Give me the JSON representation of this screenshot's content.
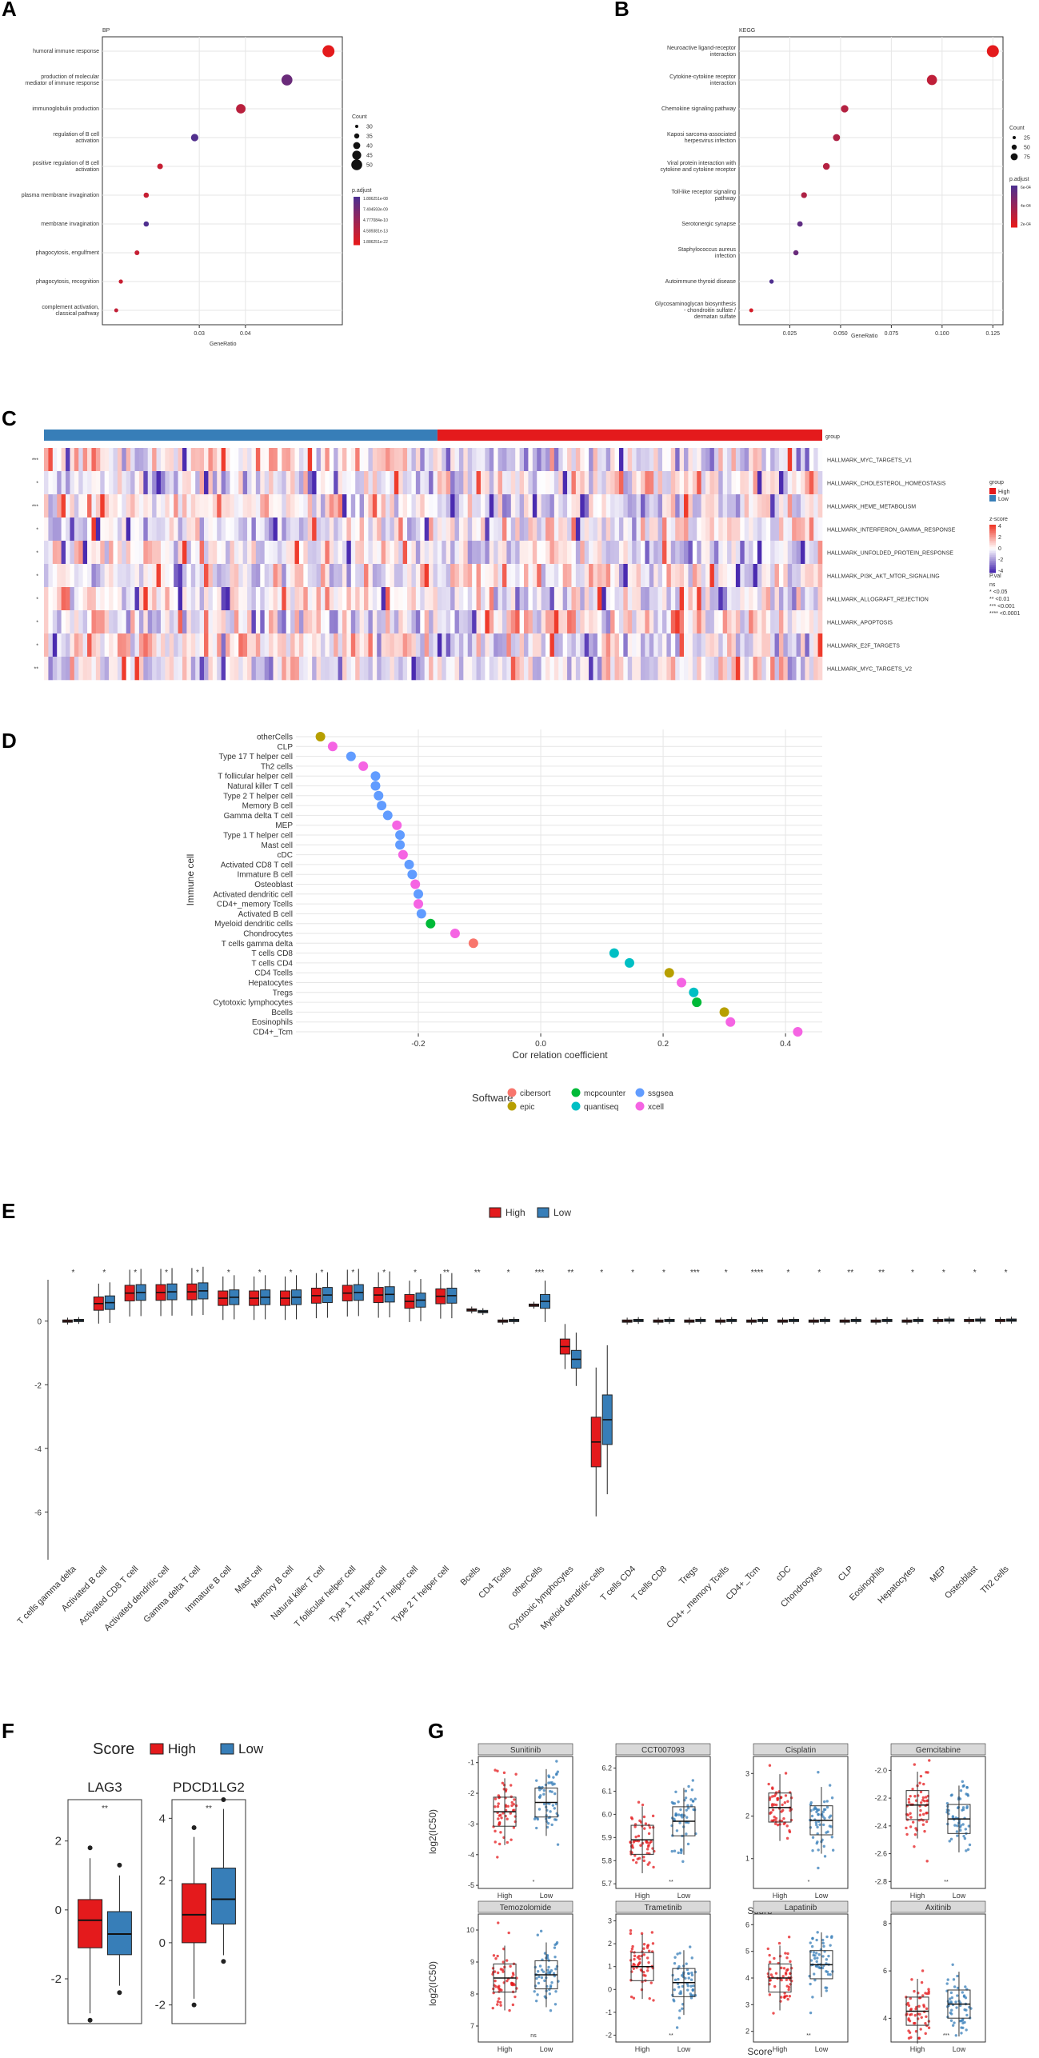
{
  "chart_data": [
    {
      "panel": "A",
      "type": "scatter",
      "title": "BP",
      "xlabel": "GeneRatio",
      "ylabel": "",
      "categories": [
        "humoral immune response",
        "production of molecular mediator of immune response",
        "immunoglobulin production",
        "regulation of B cell activation",
        "positive regulation of B cell activation",
        "plasma membrane invagination",
        "membrane invagination",
        "phagocytosis, engulfment",
        "phagocytosis, recognition",
        "complement activation, classical pathway"
      ],
      "x": [
        0.058,
        0.049,
        0.039,
        0.029,
        0.0215,
        0.0185,
        0.0185,
        0.0165,
        0.013,
        0.012
      ],
      "p": [
        1e-16,
        3e-10,
        2e-14,
        6e-09,
        4e-15,
        4e-15,
        8e-09,
        4e-15,
        3e-15,
        6e-15
      ],
      "count": [
        50,
        45,
        38,
        28,
        20,
        18,
        18,
        16,
        13,
        12
      ],
      "xticks": [
        "0.03",
        "0.04"
      ],
      "xtick_values": [
        0.03,
        0.04
      ],
      "xlim": [
        0.009,
        0.061
      ],
      "legend_count_title": "Count",
      "legend_count_labels": [
        "30",
        "35",
        "40",
        "45",
        "50"
      ],
      "legend_p_title": "p.adjust",
      "legend_p_labels": [
        "1.886251e-08",
        "7.494593e-09",
        "4.777084e-10",
        "4.589381e-13",
        "1.886251e-22"
      ]
    },
    {
      "panel": "B",
      "type": "scatter",
      "title": "KEGG",
      "xlabel": "GeneRatio",
      "ylabel": "",
      "categories": [
        "Neuroactive ligand-receptor interaction",
        "Cytokine-cytokine receptor interaction",
        "Chemokine signaling pathway",
        "Kaposi sarcoma-associated herpesvirus infection",
        "Viral protein interaction with cytokine and cytokine receptor",
        "Toll-like receptor signaling pathway",
        "Serotonergic synapse",
        "Staphylococcus aureus infection",
        "Autoimmune thyroid disease",
        "Glycosaminoglycan biosynthesis - chondroitin sulfate / dermatan sulfate"
      ],
      "x": [
        0.125,
        0.095,
        0.052,
        0.048,
        0.043,
        0.032,
        0.03,
        0.028,
        0.016,
        0.006
      ],
      "p": [
        1e-09,
        5e-09,
        8e-09,
        1e-08,
        8e-09,
        1e-08,
        3e-07,
        2e-07,
        6e-07,
        2e-09
      ],
      "count": [
        75,
        60,
        38,
        35,
        33,
        25,
        22,
        20,
        13,
        10
      ],
      "xticks": [
        "0.025",
        "0.050",
        "0.075",
        "0.100",
        "0.125"
      ],
      "xtick_values": [
        0.025,
        0.05,
        0.075,
        0.1,
        0.125
      ],
      "xlim": [
        0.0,
        0.13
      ],
      "legend_count_title": "Count",
      "legend_count_labels": [
        "25",
        "50",
        "75"
      ],
      "legend_p_title": "p.adjust",
      "legend_p_labels": [
        "6e-04",
        "4e-04",
        "2e-04"
      ]
    },
    {
      "panel": "C",
      "type": "heatmap",
      "rows": [
        "HALLMARK_MYC_TARGETS_V1",
        "HALLMARK_CHOLESTEROL_HOMEOSTASIS",
        "HALLMARK_HEME_METABOLISM",
        "HALLMARK_INTERFERON_GAMMA_RESPONSE",
        "HALLMARK_UNFOLDED_PROTEIN_RESPONSE",
        "HALLMARK_PI3K_AKT_MTOR_SIGNALING",
        "HALLMARK_ALLOGRAFT_REJECTION",
        "HALLMARK_APOPTOSIS",
        "HALLMARK_E2F_TARGETS",
        "HALLMARK_MYC_TARGETS_V2"
      ],
      "row_significance": [
        "***",
        "*",
        "***",
        "*",
        "*",
        "*",
        "*",
        "*",
        "*",
        "**"
      ],
      "group_label": "group",
      "legend_group_title": "group",
      "legend_group_items": [
        "High",
        "Low"
      ],
      "legend_z_title": "z-score",
      "legend_z_ticks": [
        "4",
        "2",
        "0",
        "-2",
        "-4"
      ],
      "legend_pval_title": "P.val",
      "legend_pval_items": [
        "ns",
        "* <0.05",
        "** <0.01",
        "*** <0.001",
        "**** <0.0001"
      ],
      "zlim": [
        -4,
        4
      ]
    },
    {
      "panel": "D",
      "type": "scatter",
      "xlabel": "Cor relation coefficient",
      "ylabel": "Immune cell",
      "categories": [
        "otherCells",
        "CLP",
        "Type 17 T helper cell",
        "Th2 cells",
        "T follicular helper cell",
        "Natural killer T cell",
        "Type 2 T helper cell",
        "Memory B cell",
        "Gamma delta T cell",
        "MEP",
        "Type 1 T helper cell",
        "Mast cell",
        "cDC",
        "Activated CD8 T cell",
        "Immature  B cell",
        "Osteoblast",
        "Activated dendritic cell",
        "CD4+_memory Tcells",
        "Activated B cell",
        "Myeloid dendritic cells",
        "Chondrocytes",
        "T cells gamma delta",
        "T cells CD8",
        "T cells CD4",
        "CD4 Tcells",
        "Hepatocytes",
        "Tregs",
        "Cytotoxic lymphocytes",
        "Bcells",
        "Eosinophils",
        "CD4+_Tcm"
      ],
      "values": [
        -0.36,
        -0.34,
        -0.31,
        -0.29,
        -0.27,
        -0.27,
        -0.265,
        -0.26,
        -0.25,
        -0.235,
        -0.23,
        -0.23,
        -0.225,
        -0.215,
        -0.21,
        -0.205,
        -0.2,
        -0.2,
        -0.195,
        -0.18,
        -0.14,
        -0.11,
        0.12,
        0.145,
        0.21,
        0.23,
        0.25,
        0.255,
        0.3,
        0.31,
        0.42
      ],
      "software": [
        "epic",
        "xcell",
        "ssgsea",
        "xcell",
        "ssgsea",
        "ssgsea",
        "ssgsea",
        "ssgsea",
        "ssgsea",
        "xcell",
        "ssgsea",
        "ssgsea",
        "xcell",
        "ssgsea",
        "ssgsea",
        "xcell",
        "ssgsea",
        "xcell",
        "ssgsea",
        "mcpcounter",
        "xcell",
        "cibersort",
        "quantiseq",
        "quantiseq",
        "epic",
        "xcell",
        "quantiseq",
        "mcpcounter",
        "epic",
        "xcell",
        "xcell"
      ],
      "xticks": [
        "-0.2",
        "0.0",
        "0.2",
        "0.4"
      ],
      "xtick_values": [
        -0.2,
        0.0,
        0.2,
        0.4
      ],
      "xlim": [
        -0.4,
        0.46
      ],
      "legend_title": "Software",
      "legend_items": [
        "cibersort",
        "epic",
        "mcpcounter",
        "quantiseq",
        "ssgsea",
        "xcell"
      ]
    },
    {
      "panel": "E",
      "type": "box",
      "categories": [
        "T cells gamma delta",
        "Activated B cell",
        "Activated CD8 T cell",
        "Activated dendritic cell",
        "Gamma delta T cell",
        "Immature  B cell",
        "Mast cell",
        "Memory B cell",
        "Natural killer T cell",
        "T follicular helper cell",
        "Type 1 T helper cell",
        "Type 17 T helper cell",
        "Type 2 T helper cell",
        "Bcells",
        "CD4 Tcells",
        "otherCells",
        "Cytotoxic lymphocytes",
        "Myeloid dendritic cells",
        "T cells CD4",
        "T cells CD8",
        "Tregs",
        "CD4+_memory Tcells",
        "CD4+_Tcm",
        "cDC",
        "Chondrocytes",
        "CLP",
        "Eosinophils",
        "Hepatocytes",
        "MEP",
        "Osteoblast",
        "Th2 cells"
      ],
      "significance": [
        "*",
        "*",
        "*",
        "*",
        "*",
        "*",
        "*",
        "*",
        "*",
        "*",
        "*",
        "*",
        "**",
        "**",
        "*",
        "***",
        "**",
        "*",
        "*",
        "*",
        "***",
        "*",
        "****",
        "*",
        "*",
        "**",
        "**",
        "*",
        "*",
        "*",
        "*"
      ],
      "medians_high": [
        0.0,
        0.55,
        0.88,
        0.9,
        0.92,
        0.72,
        0.72,
        0.72,
        0.8,
        0.88,
        0.82,
        0.62,
        0.78,
        0.35,
        0.0,
        0.5,
        -0.8,
        -3.8,
        0.0,
        0.0,
        0.0,
        0.0,
        0.0,
        0.0,
        0.0,
        0.0,
        0.0,
        0.0,
        0.02,
        0.02,
        0.02
      ],
      "medians_low": [
        0.02,
        0.58,
        0.9,
        0.92,
        0.95,
        0.75,
        0.75,
        0.75,
        0.82,
        0.9,
        0.84,
        0.66,
        0.8,
        0.3,
        0.02,
        0.62,
        -1.2,
        -3.1,
        0.02,
        0.02,
        0.02,
        0.02,
        0.02,
        0.02,
        0.02,
        0.02,
        0.02,
        0.02,
        0.03,
        0.03,
        0.03
      ],
      "yticks": [
        "0",
        "-2",
        "-4",
        "-6"
      ],
      "ytick_values": [
        0,
        -2,
        -4,
        -6
      ],
      "ylim": [
        -7.5,
        1.3
      ],
      "legend_items": [
        "High",
        "Low"
      ]
    },
    {
      "panel": "F",
      "type": "box",
      "legend_title": "Score",
      "legend_items": [
        "High",
        "Low"
      ],
      "subplots": [
        {
          "title": "LAG3",
          "sig": "**",
          "yticks": [
            "2",
            "0",
            "-2"
          ],
          "ytick_values": [
            2,
            0,
            -2
          ],
          "ylim": [
            -3.3,
            3.2
          ],
          "high": {
            "median": -0.3,
            "q1": -1.1,
            "q3": 0.3,
            "wlo": -3.0,
            "whi": 1.5
          },
          "low": {
            "median": -0.7,
            "q1": -1.3,
            "q3": -0.05,
            "wlo": -2.2,
            "whi": 1.0
          }
        },
        {
          "title": "PDCD1LG2",
          "sig": "**",
          "yticks": [
            "4",
            "2",
            "0",
            "-2"
          ],
          "ytick_values": [
            4,
            2,
            0,
            -2
          ],
          "ylim": [
            -2.6,
            4.6
          ],
          "high": {
            "median": 0.9,
            "q1": 0.0,
            "q3": 1.9,
            "wlo": -1.8,
            "whi": 3.4
          },
          "low": {
            "median": 1.4,
            "q1": 0.6,
            "q3": 2.4,
            "wlo": -0.4,
            "whi": 4.3
          }
        }
      ]
    },
    {
      "panel": "G",
      "type": "box",
      "xlabel": "Score",
      "ylabel": "log2(IC50)",
      "subplots": [
        {
          "title": "Sunitinib",
          "sig": "*",
          "yticks": [
            "-1",
            "-2",
            "-3",
            "-4",
            "-5"
          ],
          "ytick_values": [
            -1,
            -2,
            -3,
            -4,
            -5
          ],
          "ylim": [
            -5.1,
            -0.8
          ],
          "high_median": -2.6,
          "low_median": -2.3
        },
        {
          "title": "CCT007093",
          "sig": "**",
          "yticks": [
            "6.2",
            "6.1",
            "6.0",
            "5.9",
            "5.8",
            "5.7"
          ],
          "ytick_values": [
            6.2,
            6.1,
            6.0,
            5.9,
            5.8,
            5.7
          ],
          "ylim": [
            5.68,
            6.25
          ],
          "high_median": 5.89,
          "low_median": 5.97
        },
        {
          "title": "Cisplatin",
          "sig": "*",
          "yticks": [
            "3",
            "2",
            "1"
          ],
          "ytick_values": [
            3,
            2,
            1
          ],
          "ylim": [
            0.3,
            3.4
          ],
          "high_median": 2.2,
          "low_median": 1.9
        },
        {
          "title": "Gemcitabine",
          "sig": "**",
          "yticks": [
            "-2.0",
            "-2.2",
            "-2.4",
            "-2.6",
            "-2.8"
          ],
          "ytick_values": [
            -2.0,
            -2.2,
            -2.4,
            -2.6,
            -2.8
          ],
          "ylim": [
            -2.85,
            -1.9
          ],
          "high_median": -2.25,
          "low_median": -2.35
        },
        {
          "title": "Temozolomide",
          "sig": "ns",
          "yticks": [
            "10",
            "9",
            "8",
            "7"
          ],
          "ytick_values": [
            10,
            9,
            8,
            7
          ],
          "ylim": [
            6.5,
            10.5
          ],
          "high_median": 8.5,
          "low_median": 8.6
        },
        {
          "title": "Trametinib",
          "sig": "**",
          "yticks": [
            "3",
            "2",
            "1",
            "0",
            "-1",
            "-2"
          ],
          "ytick_values": [
            3,
            2,
            1,
            0,
            -1,
            -2
          ],
          "ylim": [
            -2.3,
            3.3
          ],
          "high_median": 1.0,
          "low_median": 0.3
        },
        {
          "title": "Lapatinib",
          "sig": "**",
          "yticks": [
            "6",
            "5",
            "4",
            "3",
            "2"
          ],
          "ytick_values": [
            6,
            5,
            4,
            3,
            2
          ],
          "ylim": [
            1.6,
            6.4
          ],
          "high_median": 4.0,
          "low_median": 4.5
        },
        {
          "title": "Axitinib",
          "sig": "***",
          "yticks": [
            "8",
            "6",
            "4"
          ],
          "ytick_values": [
            8,
            6,
            4
          ],
          "ylim": [
            3.0,
            8.4
          ],
          "high_median": 4.3,
          "low_median": 4.6
        }
      ],
      "group_labels": [
        "High",
        "Low"
      ]
    }
  ],
  "panel_letters": [
    "A",
    "B",
    "C",
    "D",
    "E",
    "F",
    "G"
  ],
  "colors": {
    "high": "#e41a1c",
    "low": "#377eb8",
    "grid": "#ebebeb",
    "cibersort": "#f8766d",
    "epic": "#b79f00",
    "mcpcounter": "#00ba38",
    "quantiseq": "#00bfc4",
    "ssgsea": "#619cff",
    "xcell": "#f564e3",
    "heat_high": "#ef3b2c",
    "heat_low": "#4a2bb0"
  }
}
